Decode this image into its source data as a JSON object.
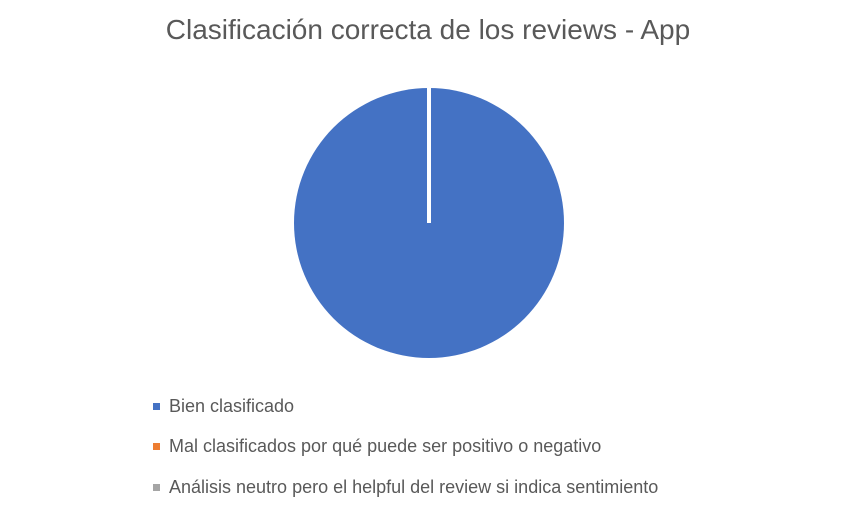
{
  "chart_data": {
    "type": "pie",
    "title": "Clasificación correcta de los reviews - App",
    "categories": [
      "Bien clasificado",
      "Mal clasificados por qué puede ser positivo o negativo",
      "Análisis neutro pero el helpful del review si indica sentimiento"
    ],
    "values": [
      100,
      0,
      0
    ],
    "colors": [
      "#4472C4",
      "#ED7D31",
      "#A5A5A5"
    ],
    "legend_position": "bottom"
  }
}
